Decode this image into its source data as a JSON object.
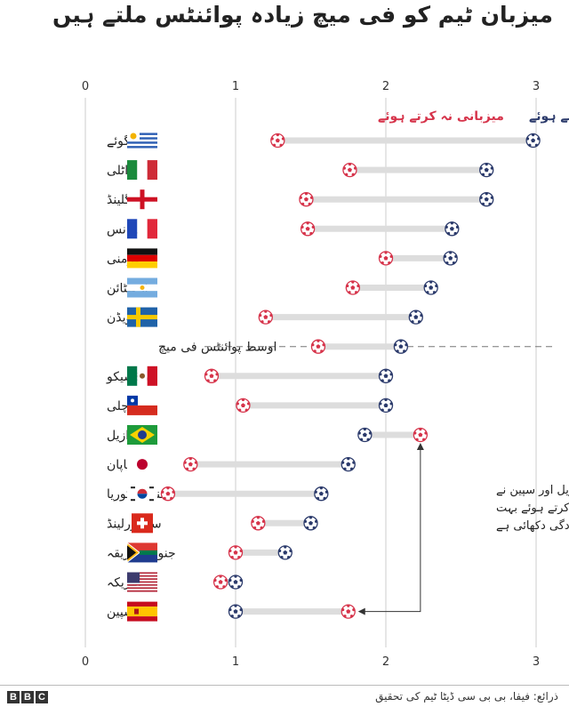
{
  "title": "میزبان ٹیم کو فی میچ زیادہ پوائنٹس ملتے ہیں",
  "source": "ذرائع: فیفا، بی بی سی ڈیٹا ٹیم کی تحقیق",
  "logo_text": "BBC",
  "colors": {
    "hosting": "#2b3a6b",
    "not_hosting": "#d6334a",
    "connector": "#dddddd",
    "grid": "#cccccc",
    "text": "#222222"
  },
  "chart_data": {
    "type": "dumbbell",
    "title": "میزبان ٹیم کو فی میچ زیادہ پوائنٹس ملتے ہیں",
    "xlim": [
      0,
      3
    ],
    "x_ticks": [
      "0",
      "1",
      "2",
      "3"
    ],
    "x_tick_values": [
      0,
      1,
      2,
      3
    ],
    "legend": {
      "hosting": "میزبانی کرتے ہوئے",
      "not_hosting": "میزبانی نہ کرتے ہوئے",
      "placement": "top"
    },
    "rows": [
      {
        "name": "یوروگوئے",
        "flag": "uruguay",
        "hosting": 2.98,
        "not_hosting": 1.28
      },
      {
        "name": "اٹلی",
        "flag": "italy",
        "hosting": 2.67,
        "not_hosting": 1.76
      },
      {
        "name": "انگلینڈ",
        "flag": "england",
        "hosting": 2.67,
        "not_hosting": 1.47
      },
      {
        "name": "فرانس",
        "flag": "france",
        "hosting": 2.44,
        "not_hosting": 1.48
      },
      {
        "name": "جرمنی",
        "flag": "germany",
        "hosting": 2.43,
        "not_hosting": 2.0
      },
      {
        "name": "ارجنٹائن",
        "flag": "argentina",
        "hosting": 2.3,
        "not_hosting": 1.78
      },
      {
        "name": "سویڈن",
        "flag": "sweden",
        "hosting": 2.2,
        "not_hosting": 1.2
      },
      {
        "name": "اوسط پوائنٹس فی میچ",
        "flag": "none",
        "hosting": 2.1,
        "not_hosting": 1.55,
        "is_average": true
      },
      {
        "name": "میکسیکو",
        "flag": "mexico",
        "hosting": 2.0,
        "not_hosting": 0.84
      },
      {
        "name": "چلی",
        "flag": "chile",
        "hosting": 2.0,
        "not_hosting": 1.05
      },
      {
        "name": "برازیل",
        "flag": "brazil",
        "hosting": 1.86,
        "not_hosting": 2.23
      },
      {
        "name": "جاپان",
        "flag": "japan",
        "hosting": 1.75,
        "not_hosting": 0.7
      },
      {
        "name": "جنوبی کوریا",
        "flag": "south_korea",
        "hosting": 1.57,
        "not_hosting": 0.55
      },
      {
        "name": "سوئٹزرلینڈ",
        "flag": "switzerland",
        "hosting": 1.5,
        "not_hosting": 1.15
      },
      {
        "name": "جنوبی افریقہ",
        "flag": "south_africa",
        "hosting": 1.33,
        "not_hosting": 1.0
      },
      {
        "name": "امریکہ",
        "flag": "usa",
        "hosting": 1.0,
        "not_hosting": 0.9
      },
      {
        "name": "سپین",
        "flag": "spain",
        "hosting": 1.0,
        "not_hosting": 1.75
      }
    ],
    "annotation": {
      "lines": [
        "برازیل اور سپین نے",
        "میزبانی نہ کرتے ہوئے بہت",
        "کارکردگی دکھائی ہے"
      ],
      "targets": [
        "برازیل",
        "سپین"
      ]
    }
  }
}
